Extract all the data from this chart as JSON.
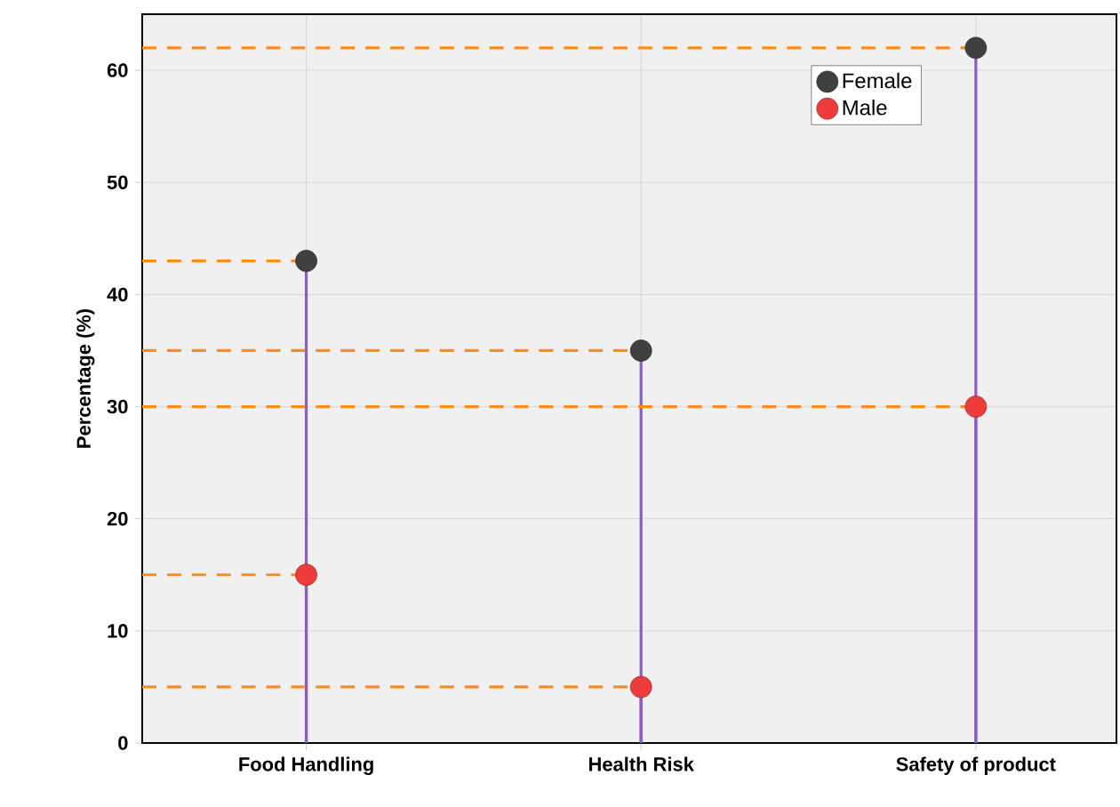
{
  "chart_data": {
    "type": "lollipop",
    "ylabel": "Percentage (%)",
    "categories": [
      "Food Handling",
      "Health Risk",
      "Safety of product"
    ],
    "series": [
      {
        "name": "Female",
        "color": "#404040",
        "values": [
          43,
          35,
          62
        ]
      },
      {
        "name": "Male",
        "color": "#ee3b3b",
        "values": [
          15,
          5,
          30
        ]
      }
    ],
    "ref_lines": [
      {
        "axis": "y",
        "value": 62,
        "color": "#ff8c1a",
        "line_style": "dashed"
      },
      {
        "axis": "y",
        "value": 43,
        "color": "#ff8c1a",
        "line_style": "dashed"
      },
      {
        "axis": "y",
        "value": 35,
        "color": "#ff8c1a",
        "line_style": "dashed"
      },
      {
        "axis": "y",
        "value": 30,
        "color": "#ff8c1a",
        "line_style": "dashed"
      },
      {
        "axis": "y",
        "value": 15,
        "color": "#ff8c1a",
        "line_style": "dashed"
      },
      {
        "axis": "y",
        "value": 5,
        "color": "#ff8c1a",
        "line_style": "dashed"
      }
    ],
    "ylim": [
      0,
      65
    ],
    "yticks": [
      0,
      10,
      20,
      30,
      40,
      50,
      60
    ],
    "grid": true,
    "legend": "top right",
    "marker": "circle"
  }
}
